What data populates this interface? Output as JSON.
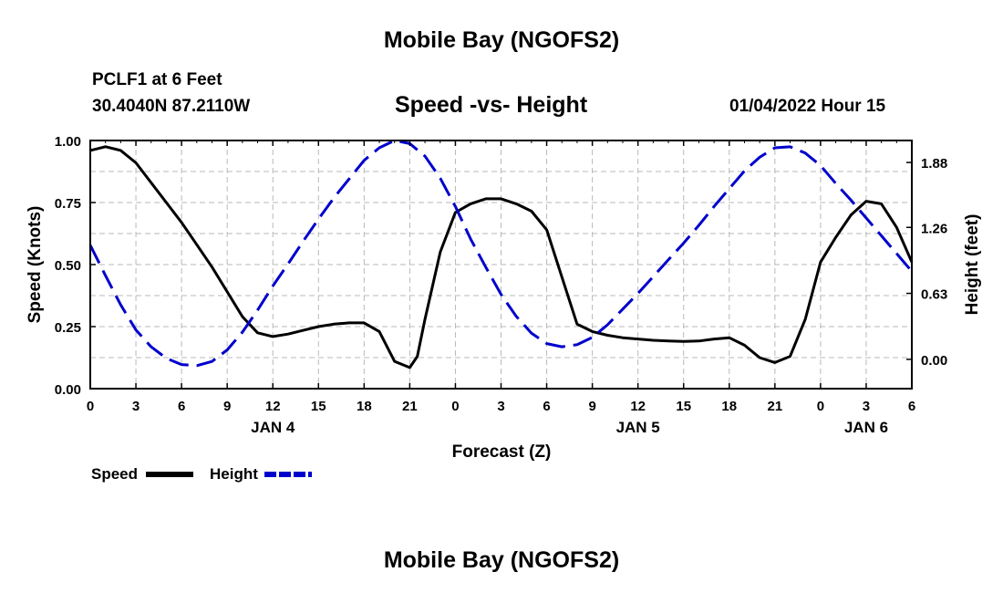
{
  "chart_data": {
    "type": "line",
    "title": "Mobile Bay (NGOFS2)",
    "footer_title": "Mobile Bay (NGOFS2)",
    "station": "PCLF1 at 6 Feet",
    "coords": "30.4040N  87.2110W",
    "subtitle": "Speed -vs- Height",
    "datetime": "01/04/2022 Hour 15",
    "xlabel": "Forecast (Z)",
    "ylabel_left": "Speed (Knots)",
    "ylabel_right": "Height (feet)",
    "xlim": [
      0,
      54
    ],
    "ylim_left": [
      0,
      1
    ],
    "ylim_right": [
      -0.28,
      2.09
    ],
    "grid": true,
    "legend_placement": "bottom-left",
    "x_ticks": [
      {
        "x": 0,
        "label": "0"
      },
      {
        "x": 3,
        "label": "3"
      },
      {
        "x": 6,
        "label": "6"
      },
      {
        "x": 9,
        "label": "9"
      },
      {
        "x": 12,
        "label": "12"
      },
      {
        "x": 15,
        "label": "15"
      },
      {
        "x": 18,
        "label": "18"
      },
      {
        "x": 21,
        "label": "21"
      },
      {
        "x": 24,
        "label": "0"
      },
      {
        "x": 27,
        "label": "3"
      },
      {
        "x": 30,
        "label": "6"
      },
      {
        "x": 33,
        "label": "9"
      },
      {
        "x": 36,
        "label": "12"
      },
      {
        "x": 39,
        "label": "15"
      },
      {
        "x": 42,
        "label": "18"
      },
      {
        "x": 45,
        "label": "21"
      },
      {
        "x": 48,
        "label": "0"
      },
      {
        "x": 51,
        "label": "3"
      },
      {
        "x": 54,
        "label": "6"
      }
    ],
    "day_labels": [
      {
        "x": 12,
        "label": "JAN 4"
      },
      {
        "x": 36,
        "label": "JAN 5"
      },
      {
        "x": 51,
        "label": "JAN 6"
      }
    ],
    "y_ticks_left": [
      {
        "y": 0,
        "label": "0.00"
      },
      {
        "y": 0.25,
        "label": "0.25"
      },
      {
        "y": 0.5,
        "label": "0.50"
      },
      {
        "y": 0.75,
        "label": "0.75"
      },
      {
        "y": 1.0,
        "label": "1.00"
      }
    ],
    "y_ticks_right": [
      {
        "y": 0.0,
        "label": "0.00"
      },
      {
        "y": 0.63,
        "label": "0.63"
      },
      {
        "y": 1.26,
        "label": "1.26"
      },
      {
        "y": 1.88,
        "label": "1.88"
      }
    ],
    "series": [
      {
        "name": "Speed",
        "axis": "left",
        "color": "#000000",
        "style": "solid",
        "points": [
          [
            0,
            0.96
          ],
          [
            1,
            0.975
          ],
          [
            2,
            0.96
          ],
          [
            3,
            0.91
          ],
          [
            4,
            0.83
          ],
          [
            5,
            0.75
          ],
          [
            6,
            0.67
          ],
          [
            7,
            0.58
          ],
          [
            8,
            0.49
          ],
          [
            9,
            0.39
          ],
          [
            10,
            0.29
          ],
          [
            11,
            0.225
          ],
          [
            12,
            0.21
          ],
          [
            13,
            0.22
          ],
          [
            14,
            0.235
          ],
          [
            15,
            0.25
          ],
          [
            16,
            0.26
          ],
          [
            17,
            0.265
          ],
          [
            18,
            0.265
          ],
          [
            19,
            0.23
          ],
          [
            20,
            0.11
          ],
          [
            21,
            0.085
          ],
          [
            21.5,
            0.13
          ],
          [
            22,
            0.28
          ],
          [
            23,
            0.55
          ],
          [
            24,
            0.71
          ],
          [
            25,
            0.745
          ],
          [
            26,
            0.765
          ],
          [
            27,
            0.765
          ],
          [
            28,
            0.745
          ],
          [
            29,
            0.715
          ],
          [
            30,
            0.64
          ],
          [
            31,
            0.45
          ],
          [
            32,
            0.26
          ],
          [
            33,
            0.23
          ],
          [
            34,
            0.215
          ],
          [
            35,
            0.205
          ],
          [
            36,
            0.2
          ],
          [
            37,
            0.195
          ],
          [
            38,
            0.192
          ],
          [
            39,
            0.19
          ],
          [
            40,
            0.192
          ],
          [
            41,
            0.2
          ],
          [
            42,
            0.205
          ],
          [
            43,
            0.175
          ],
          [
            44,
            0.125
          ],
          [
            45,
            0.105
          ],
          [
            46,
            0.13
          ],
          [
            47,
            0.28
          ],
          [
            48,
            0.51
          ],
          [
            49,
            0.61
          ],
          [
            50,
            0.7
          ],
          [
            51,
            0.755
          ],
          [
            52,
            0.745
          ],
          [
            53,
            0.65
          ],
          [
            54,
            0.51
          ]
        ]
      },
      {
        "name": "Height",
        "axis": "right",
        "color": "#0000cc",
        "style": "dashed",
        "points": [
          [
            0,
            1.09
          ],
          [
            1,
            0.8
          ],
          [
            2,
            0.52
          ],
          [
            3,
            0.28
          ],
          [
            4,
            0.12
          ],
          [
            5,
            0.01
          ],
          [
            6,
            -0.05
          ],
          [
            7,
            -0.06
          ],
          [
            8,
            -0.02
          ],
          [
            9,
            0.09
          ],
          [
            10,
            0.26
          ],
          [
            11,
            0.47
          ],
          [
            12,
            0.7
          ],
          [
            13,
            0.91
          ],
          [
            14,
            1.13
          ],
          [
            15,
            1.34
          ],
          [
            16,
            1.54
          ],
          [
            17,
            1.72
          ],
          [
            18,
            1.9
          ],
          [
            19,
            2.02
          ],
          [
            20,
            2.09
          ],
          [
            21,
            2.06
          ],
          [
            22,
            1.94
          ],
          [
            23,
            1.73
          ],
          [
            24,
            1.46
          ],
          [
            25,
            1.15
          ],
          [
            26,
            0.88
          ],
          [
            27,
            0.62
          ],
          [
            28,
            0.41
          ],
          [
            29,
            0.25
          ],
          [
            30,
            0.15
          ],
          [
            31,
            0.12
          ],
          [
            32,
            0.14
          ],
          [
            33,
            0.21
          ],
          [
            34,
            0.33
          ],
          [
            35,
            0.48
          ],
          [
            36,
            0.63
          ],
          [
            37,
            0.79
          ],
          [
            38,
            0.95
          ],
          [
            39,
            1.11
          ],
          [
            40,
            1.28
          ],
          [
            41,
            1.46
          ],
          [
            42,
            1.63
          ],
          [
            43,
            1.8
          ],
          [
            44,
            1.93
          ],
          [
            45,
            2.02
          ],
          [
            46,
            2.03
          ],
          [
            47,
            1.97
          ],
          [
            48,
            1.85
          ],
          [
            49,
            1.68
          ],
          [
            50,
            1.52
          ],
          [
            51,
            1.35
          ],
          [
            52,
            1.18
          ],
          [
            53,
            1.01
          ],
          [
            54,
            0.84
          ]
        ]
      }
    ]
  }
}
